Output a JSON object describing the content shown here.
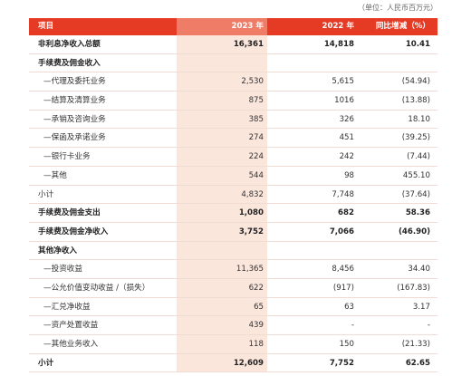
{
  "unit_note": "（单位：人民币百万元）",
  "header": [
    "项目",
    "2023 年",
    "2022 年",
    "同比增减（%）"
  ],
  "rows": [
    {
      "label": "非利息净收入总额",
      "v2023": "16,361",
      "v2022": "14,818",
      "change": "10.41",
      "bold": true
    },
    {
      "label": "手续费及佣金收入",
      "v2023": "",
      "v2022": "",
      "change": "",
      "bold": true
    },
    {
      "label": "—代理及委托业务",
      "v2023": "2,530",
      "v2022": "5,615",
      "change": "(54.94)",
      "indent": true
    },
    {
      "label": "—结算及清算业务",
      "v2023": "875",
      "v2022": "1016",
      "change": "(13.88)",
      "indent": true
    },
    {
      "label": "—承销及咨询业务",
      "v2023": "385",
      "v2022": "326",
      "change": "18.10",
      "indent": true
    },
    {
      "label": "—保函及承诺业务",
      "v2023": "274",
      "v2022": "451",
      "change": "(39.25)",
      "indent": true
    },
    {
      "label": "—银行卡业务",
      "v2023": "224",
      "v2022": "242",
      "change": "(7.44)",
      "indent": true
    },
    {
      "label": "—其他",
      "v2023": "544",
      "v2022": "98",
      "change": "455.10",
      "indent": true
    },
    {
      "label": "小计",
      "v2023": "4,832",
      "v2022": "7,748",
      "change": "(37.64)"
    },
    {
      "label": "手续费及佣金支出",
      "v2023": "1,080",
      "v2022": "682",
      "change": "58.36",
      "bold": true
    },
    {
      "label": "手续费及佣金净收入",
      "v2023": "3,752",
      "v2022": "7,066",
      "change": "(46.90)",
      "bold": true
    },
    {
      "label": "其他净收入",
      "v2023": "",
      "v2022": "",
      "change": "",
      "bold": true
    },
    {
      "label": "—投资收益",
      "v2023": "11,365",
      "v2022": "8,456",
      "change": "34.40",
      "indent": true
    },
    {
      "label": "—公允价值变动收益 /（损失）",
      "v2023": "622",
      "v2022": "(917)",
      "change": "(167.83)",
      "indent": true
    },
    {
      "label": "—汇兑净收益",
      "v2023": "65",
      "v2022": "63",
      "change": "3.17",
      "indent": true
    },
    {
      "label": "—资产处置收益",
      "v2023": "439",
      "v2022": "-",
      "change": "-",
      "indent": true
    },
    {
      "label": "—其他业务收入",
      "v2023": "118",
      "v2022": "150",
      "change": "(21.33)",
      "indent": true
    },
    {
      "label": "小计",
      "v2023": "12,609",
      "v2022": "7,752",
      "change": "62.65",
      "bold": true
    }
  ]
}
